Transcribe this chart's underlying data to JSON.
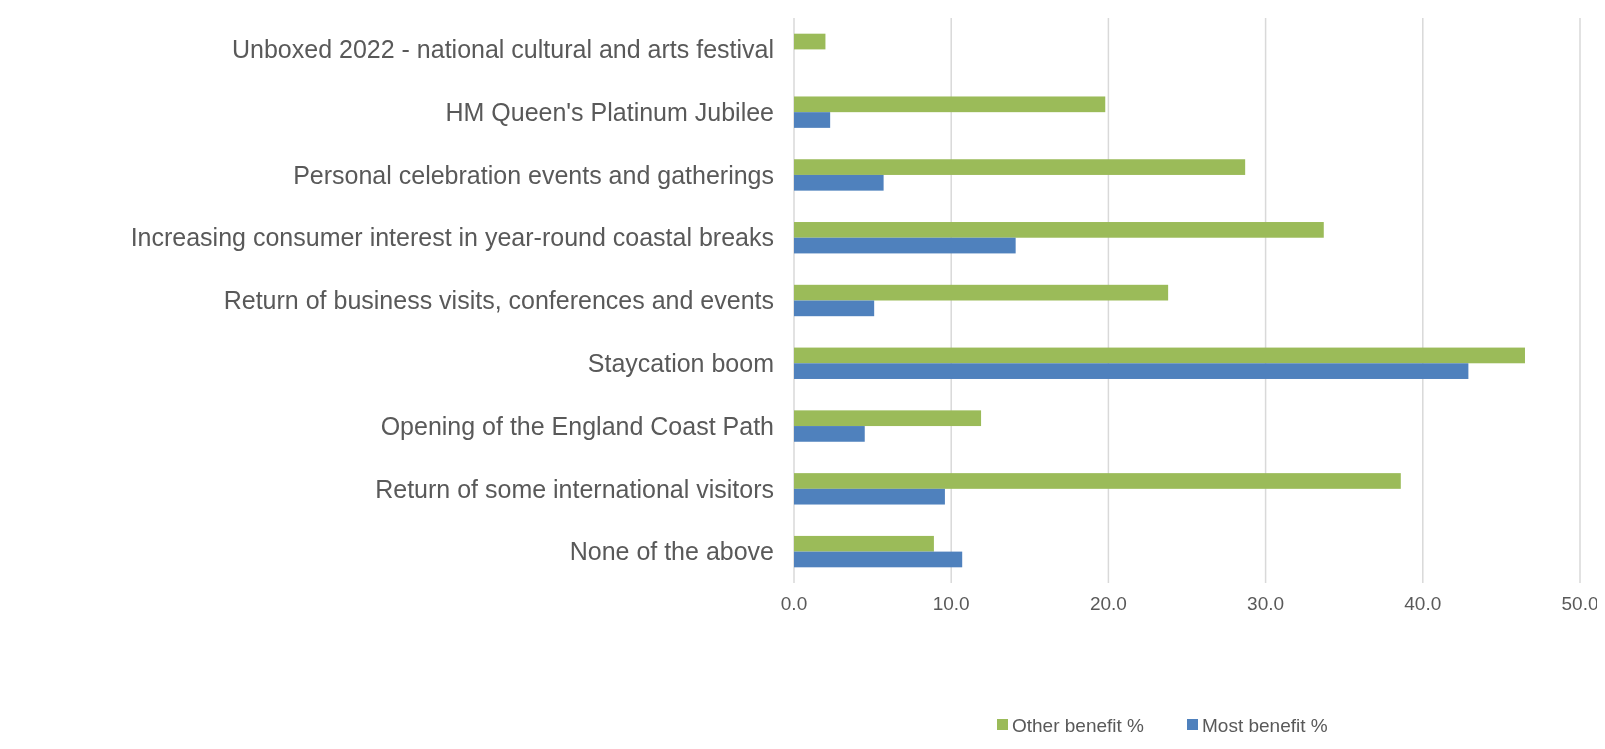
{
  "chart_data": {
    "type": "bar",
    "orientation": "horizontal",
    "categories": [
      "Unboxed 2022 - national cultural and arts festival",
      "HM Queen's Platinum Jubilee",
      "Personal celebration events and gatherings",
      "Increasing consumer interest in year-round coastal breaks",
      "Return of business visits, conferences and events",
      "Staycation boom",
      "Opening of the England Coast Path",
      "Return of some international visitors",
      "None of the above"
    ],
    "series": [
      {
        "name": "Other benefit %",
        "color": "#9bbb59",
        "values": [
          2.0,
          19.8,
          28.7,
          33.7,
          23.8,
          46.5,
          11.9,
          38.6,
          8.9
        ]
      },
      {
        "name": "Most benefit %",
        "color": "#4f81bd",
        "values": [
          null,
          2.3,
          5.7,
          14.1,
          5.1,
          42.9,
          4.5,
          9.6,
          10.7
        ]
      }
    ],
    "xlim": [
      0,
      50
    ],
    "xticks": [
      {
        "value": 0,
        "label": "0.0"
      },
      {
        "value": 10,
        "label": "10.0"
      },
      {
        "value": 20,
        "label": "20.0"
      },
      {
        "value": 30,
        "label": "30.0"
      },
      {
        "value": 40,
        "label": "40.0"
      },
      {
        "value": 50,
        "label": "50.0"
      }
    ],
    "grid": "x",
    "legend": "bottom"
  }
}
